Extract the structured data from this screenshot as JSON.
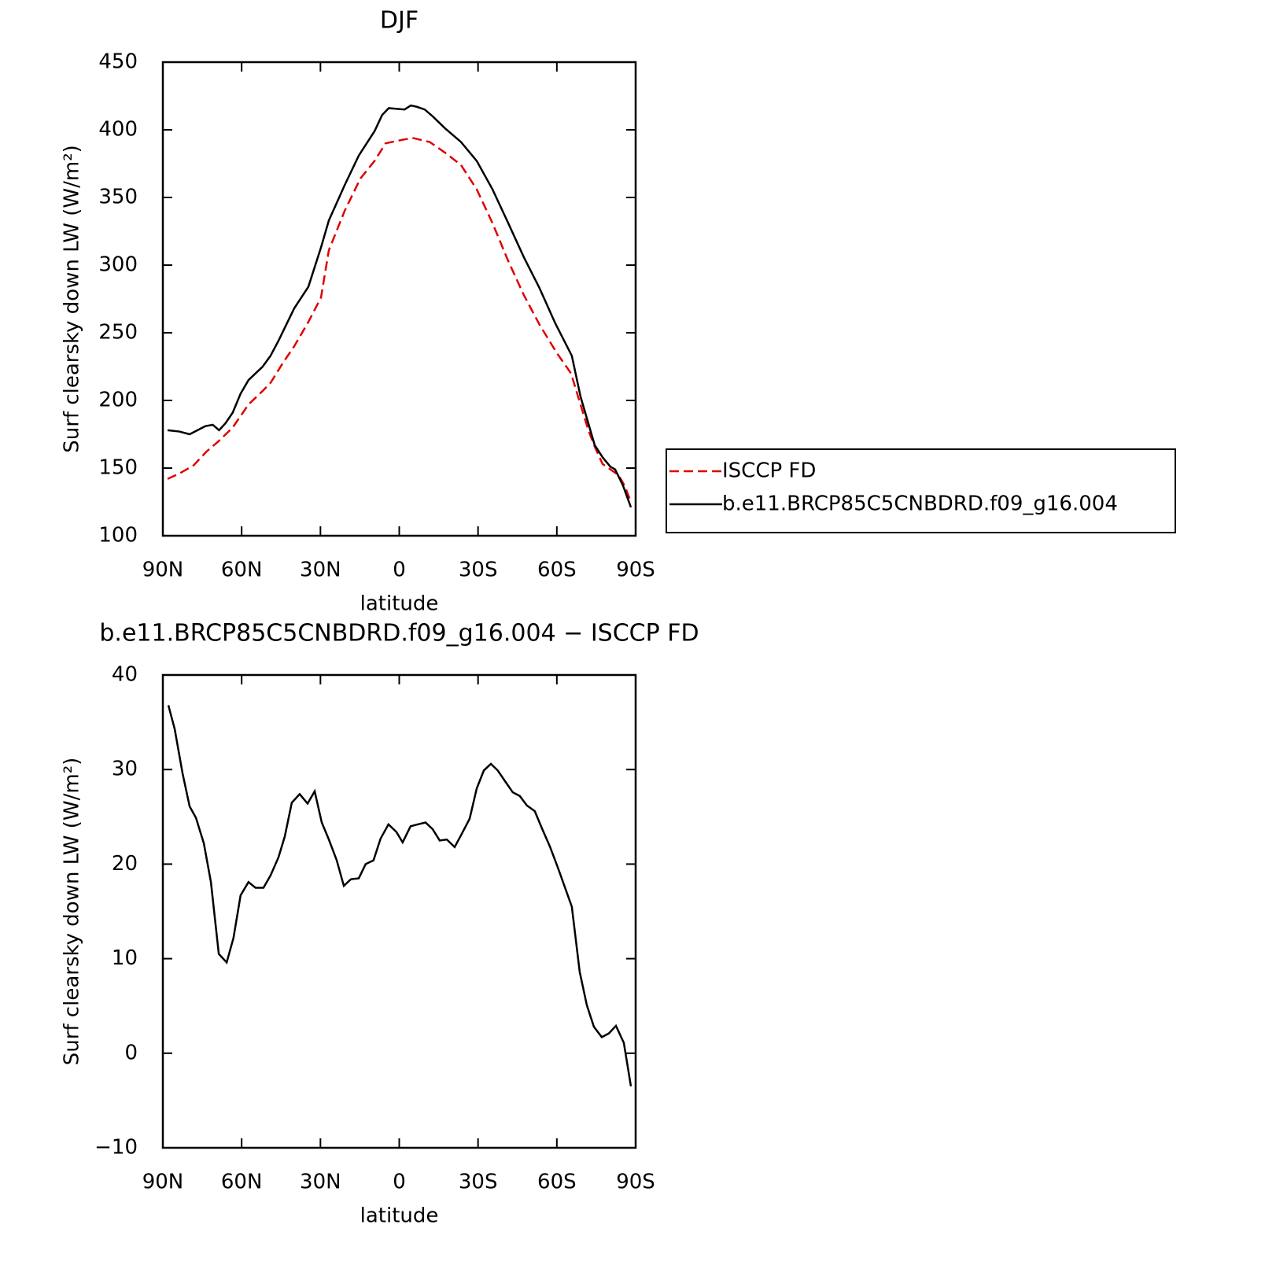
{
  "chart_data": [
    {
      "type": "line",
      "title": "DJF",
      "xlabel": "latitude",
      "ylabel": "Surf clearsky down LW (W/m²)",
      "xlim": [
        90,
        -90
      ],
      "xticks": [
        {
          "value": 90,
          "label": "90N"
        },
        {
          "value": 60,
          "label": "60N"
        },
        {
          "value": 30,
          "label": "30N"
        },
        0,
        {
          "value": -30,
          "label": "30S"
        },
        {
          "value": -60,
          "label": "60S"
        },
        {
          "value": -90,
          "label": "90S"
        }
      ],
      "ylim": [
        100,
        450
      ],
      "yticks": [
        100,
        150,
        200,
        250,
        300,
        350,
        400,
        450
      ],
      "legend": "right",
      "series": [
        {
          "name": "ISCCP FD",
          "color": "#e00000",
          "dash": "dashed",
          "x": [
            88.2,
            83.7,
            78.3,
            73.5,
            68.7,
            63.4,
            57.4,
            52,
            49,
            44.2,
            40,
            34.6,
            29.8,
            26.8,
            20.8,
            14.8,
            9.4,
            5.2,
            0.4,
            -5,
            -11.6,
            -17.5,
            -23.5,
            -29.5,
            -35.5,
            -41.5,
            -47.4,
            -53.4,
            -60,
            -65.4,
            -69,
            -72,
            -74.4,
            -77.4,
            -80.4,
            -83.4,
            -85.8,
            -88.2
          ],
          "values": [
            142,
            146,
            152,
            162,
            170,
            180,
            197,
            207,
            213,
            228,
            240,
            258,
            276,
            311,
            340,
            364,
            377,
            390,
            392,
            394,
            391,
            383,
            374,
            356,
            331,
            303,
            278,
            256,
            235,
            220,
            197,
            178,
            166,
            153,
            149,
            145,
            137,
            125
          ]
        },
        {
          "name": "b.e11.BRCP85C5CNBDRD.f09_g16.004",
          "color": "#000000",
          "dash": "solid",
          "x": [
            88.2,
            83.7,
            79.8,
            76.8,
            73.8,
            71,
            68.6,
            66.2,
            63.4,
            60.4,
            57.4,
            52,
            49,
            46,
            40,
            34.6,
            29.8,
            26.8,
            20.8,
            15.4,
            9.4,
            6.5,
            4,
            -2,
            -4.4,
            -6.7,
            -9.7,
            -12.7,
            -17.5,
            -23.5,
            -29.5,
            -35.5,
            -41.5,
            -47.4,
            -53.4,
            -59.4,
            -65.7,
            -69,
            -74.4,
            -77.4,
            -80.4,
            -82.2,
            -85.2,
            -88.2
          ],
          "values": [
            178,
            177,
            175,
            178,
            181,
            182,
            178,
            183,
            191,
            205,
            215,
            225,
            233,
            244,
            268,
            284,
            313,
            333,
            359,
            381,
            399,
            411,
            416,
            415,
            418,
            417,
            415,
            410,
            401,
            391,
            377,
            356,
            331,
            306,
            283,
            257,
            233,
            203,
            167,
            158,
            151,
            149,
            137,
            121
          ]
        }
      ]
    },
    {
      "type": "line",
      "title": "b.e11.BRCP85C5CNBDRD.f09_g16.004 − ISCCP FD",
      "xlabel": "latitude",
      "ylabel": "Surf clearsky down LW (W/m²)",
      "xlim": [
        90,
        -90
      ],
      "xticks": [
        {
          "value": 90,
          "label": "90N"
        },
        {
          "value": 60,
          "label": "60N"
        },
        {
          "value": 30,
          "label": "30N"
        },
        0,
        {
          "value": -30,
          "label": "30S"
        },
        {
          "value": -60,
          "label": "60S"
        },
        {
          "value": -90,
          "label": "90S"
        }
      ],
      "ylim": [
        -10,
        40
      ],
      "yticks": [
        {
          "value": -10,
          "label": "−10"
        },
        0,
        10,
        20,
        30,
        40
      ],
      "series": [
        {
          "color": "#000000",
          "dash": "solid",
          "x": [
            87.9,
            85.5,
            82.5,
            79.8,
            77.4,
            74.4,
            71.7,
            68.7,
            65.7,
            63.1,
            60.4,
            57.4,
            54.7,
            51.7,
            49,
            46,
            43.6,
            40.9,
            37.9,
            34.9,
            32.2,
            29.5,
            26.8,
            23.8,
            21.1,
            18.4,
            15.4,
            12.8,
            9.8,
            7.1,
            4.1,
            1.1,
            -1.3,
            -4.3,
            -7,
            -10,
            -12.7,
            -15.4,
            -18.1,
            -21.1,
            -23.8,
            -26.8,
            -29.5,
            -32.2,
            -34.9,
            -37.5,
            -40.2,
            -43.2,
            -45.9,
            -48.6,
            -51.6,
            -54.3,
            -57.3,
            -60.3,
            -63,
            -65.7,
            -68.7,
            -71.4,
            -74.1,
            -77.1,
            -79.8,
            -82.5,
            -85.5,
            -88.2
          ],
          "values": [
            36.8,
            34.3,
            29.6,
            26.1,
            24.9,
            22.2,
            18.1,
            10.5,
            9.6,
            12.2,
            16.7,
            18.1,
            17.5,
            17.5,
            18.8,
            20.7,
            22.9,
            26.5,
            27.4,
            26.4,
            27.7,
            24.4,
            22.6,
            20.4,
            17.7,
            18.4,
            18.5,
            20,
            20.4,
            22.7,
            24.2,
            23.4,
            22.3,
            24,
            24.2,
            24.4,
            23.7,
            22.5,
            22.6,
            21.8,
            23.2,
            24.8,
            28,
            29.9,
            30.6,
            29.9,
            28.8,
            27.6,
            27.2,
            26.2,
            25.6,
            23.8,
            21.9,
            19.7,
            17.6,
            15.5,
            8.6,
            5.1,
            2.8,
            1.7,
            2.1,
            2.9,
            1.1,
            -3.5
          ]
        }
      ]
    }
  ]
}
